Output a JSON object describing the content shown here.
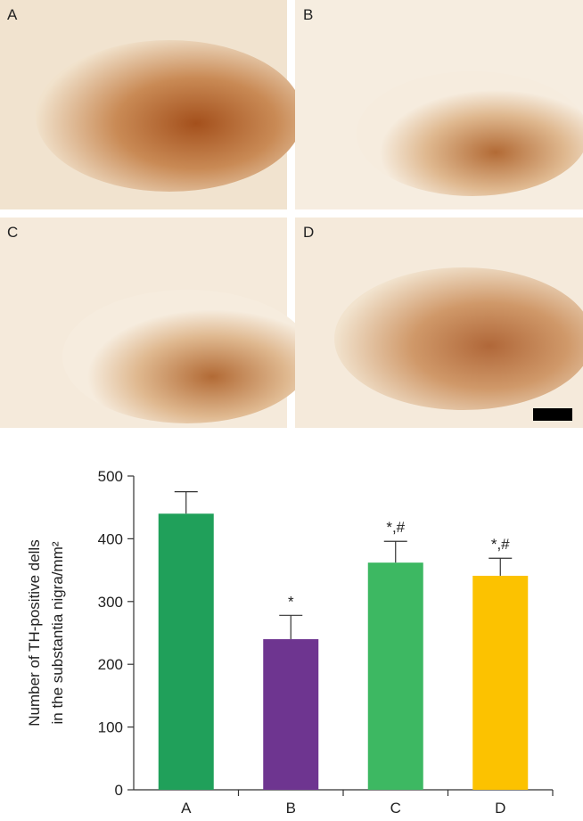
{
  "image_panels": {
    "labels": [
      "A",
      "B",
      "C",
      "D"
    ]
  },
  "chart_data": {
    "type": "bar",
    "y_label": [
      "Number of TH-positive dells",
      "in the substantia nigra/mm²"
    ],
    "categories": [
      "A",
      "B",
      "C",
      "D"
    ],
    "values": [
      440,
      240,
      362,
      341
    ],
    "errors": [
      35,
      38,
      34,
      28
    ],
    "colors": [
      "#20a05a",
      "#6e3590",
      "#3db862",
      "#fcc200"
    ],
    "annotations": [
      null,
      "*",
      "*,#",
      "*,#"
    ],
    "ylim": [
      0,
      500
    ],
    "yticks": [
      0,
      100,
      200,
      300,
      400,
      500
    ]
  }
}
